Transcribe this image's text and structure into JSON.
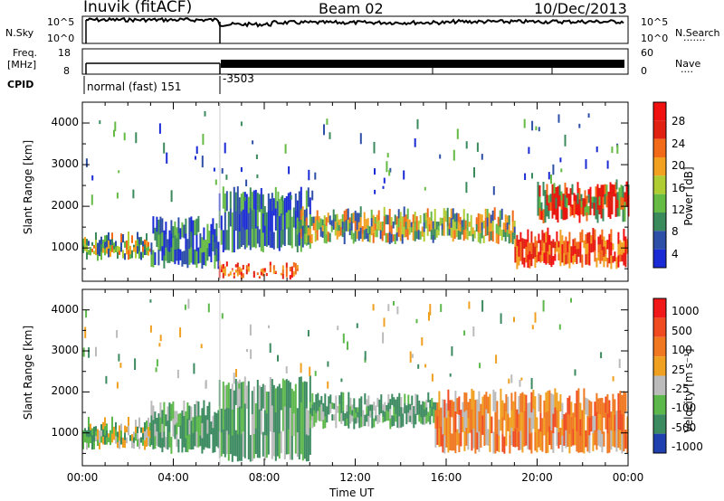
{
  "header": {
    "station": "Inuvik (fitACF)",
    "beam": "Beam 02",
    "date": "10/Dec/2013"
  },
  "panels": {
    "nsky_label": "N.Sky",
    "nsearch_label": "N.Search",
    "nsearch_dots": "·······",
    "nsky_ticks": [
      "10^5",
      "10^0"
    ],
    "nsearch_ticks": [
      "10^5",
      "10^0"
    ],
    "freq_label_line1": "Freq.",
    "freq_label_line2": "[MHz]",
    "freq_ticks": [
      "18",
      "8"
    ],
    "nave_label": "Nave",
    "nave_dots": "····",
    "nave_ticks": [
      "60",
      "0"
    ],
    "cpid_label": "CPID",
    "cpid_text_1": "normal (fast) 151",
    "cpid_text_2": "-3503"
  },
  "colors": {
    "power": [
      "#1a2bd6",
      "#2e4fa8",
      "#3b8a5c",
      "#66bb44",
      "#b0cc33",
      "#f2a020",
      "#f26a18",
      "#e02010",
      "#f01010"
    ],
    "velocity": [
      "#2040b0",
      "#3c8a60",
      "#5cb84a",
      "#bbbbbb",
      "#f0a020",
      "#f07820",
      "#f04a20",
      "#f01818"
    ]
  },
  "chart_data": [
    {
      "type": "heatmap",
      "name": "power",
      "ylabel": "Slant Range [km]",
      "xlabel": "",
      "ylim": [
        200,
        4500
      ],
      "xlim": [
        0,
        24
      ],
      "yticks": [
        "4000",
        "3000",
        "2000",
        "1000"
      ],
      "xticks": [
        "00:00",
        "04:00",
        "08:00",
        "12:00",
        "16:00",
        "20:00",
        "00:00"
      ],
      "colorbar_label": "Power [dB]",
      "colorbar_ticks": [
        "28",
        "24",
        "20",
        "16",
        "12",
        "8",
        "4"
      ],
      "echo_bands": [
        {
          "t0": 0.0,
          "t1": 3.0,
          "r_low": 700,
          "r_high": 1400,
          "level": "mid"
        },
        {
          "t0": 3.0,
          "t1": 6.0,
          "r_low": 500,
          "r_high": 1800,
          "level": "low"
        },
        {
          "t0": 6.0,
          "t1": 9.5,
          "r_low": 250,
          "r_high": 700,
          "level": "high"
        },
        {
          "t0": 6.0,
          "t1": 10.0,
          "r_low": 900,
          "r_high": 2500,
          "level": "low"
        },
        {
          "t0": 9.5,
          "t1": 19.0,
          "r_low": 1100,
          "r_high": 2000,
          "level": "mid"
        },
        {
          "t0": 19.0,
          "t1": 24.0,
          "r_low": 500,
          "r_high": 1500,
          "level": "high"
        },
        {
          "t0": 20.0,
          "t1": 24.0,
          "r_low": 1600,
          "r_high": 2600,
          "level": "mixed"
        }
      ]
    },
    {
      "type": "heatmap",
      "name": "velocity",
      "ylabel": "Slant Range [km]",
      "xlabel": "Time UT",
      "ylim": [
        200,
        4500
      ],
      "xlim": [
        0,
        24
      ],
      "yticks": [
        "4000",
        "3000",
        "2000",
        "1000"
      ],
      "xticks": [
        "00:00",
        "04:00",
        "08:00",
        "12:00",
        "16:00",
        "20:00",
        "00:00"
      ],
      "colorbar_label": "Velocity [m s⁻¹]",
      "colorbar_ticks": [
        "1000",
        "500",
        "100",
        "25",
        "-25",
        "-100",
        "-500",
        "-1000"
      ],
      "echo_bands": [
        {
          "t0": 0.0,
          "t1": 3.0,
          "r_low": 600,
          "r_high": 1400,
          "level": "green"
        },
        {
          "t0": 3.0,
          "t1": 6.0,
          "r_low": 500,
          "r_high": 1800,
          "level": "darkgreen"
        },
        {
          "t0": 6.0,
          "t1": 10.0,
          "r_low": 300,
          "r_high": 2400,
          "level": "darkgreen"
        },
        {
          "t0": 10.0,
          "t1": 15.5,
          "r_low": 1100,
          "r_high": 2000,
          "level": "darkgreen"
        },
        {
          "t0": 15.5,
          "t1": 24.0,
          "r_low": 500,
          "r_high": 2100,
          "level": "orange"
        }
      ]
    }
  ]
}
